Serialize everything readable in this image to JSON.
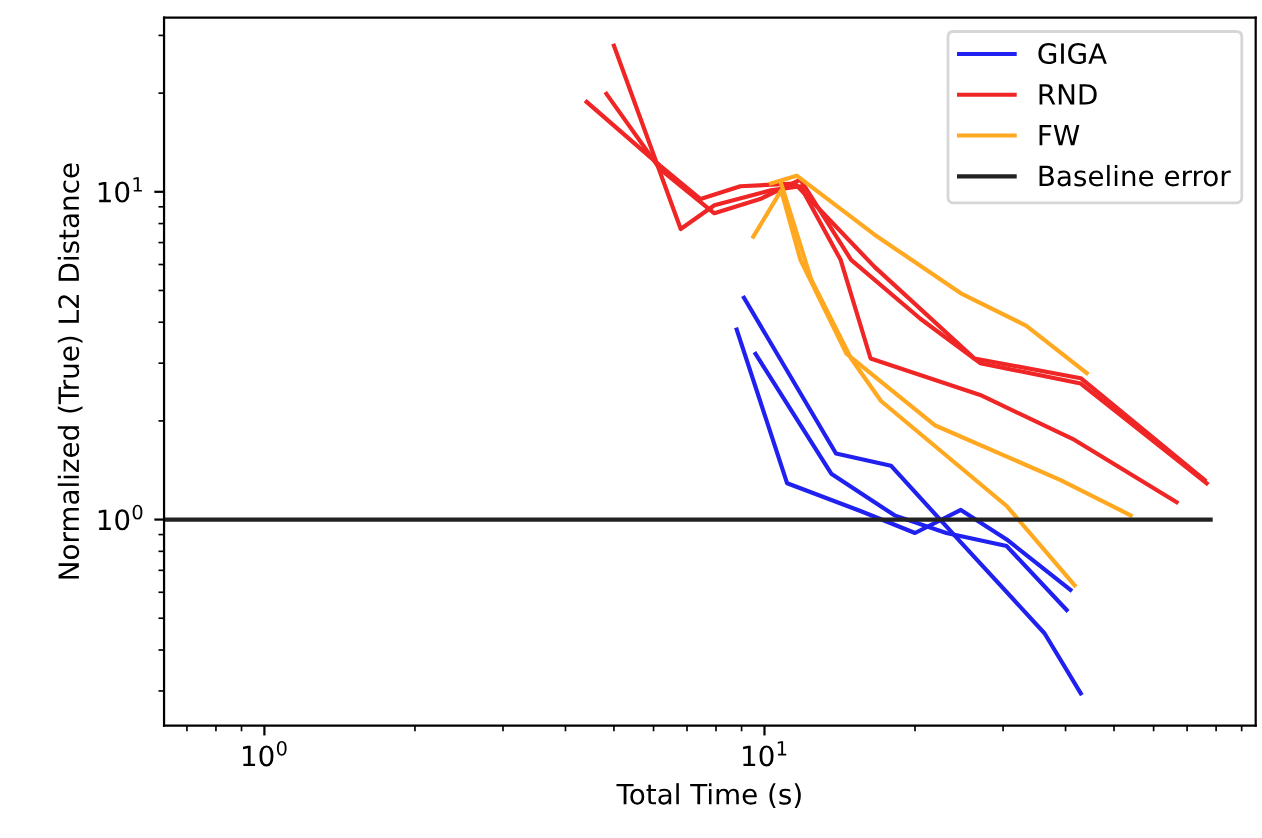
{
  "chart_data": {
    "type": "line",
    "xlabel": "Total Time (s)",
    "ylabel": "Normalized (True) L2 Distance",
    "log": "xy",
    "grid": false,
    "legend": "top right",
    "xlim": [
      0.63,
      96
    ],
    "ylim": [
      0.235,
      34
    ],
    "xticks": [
      {
        "value": 1,
        "label": "10$^{0}$"
      },
      {
        "value": 10,
        "label": "10$^{1}$"
      }
    ],
    "yticks": [
      {
        "value": 1,
        "label": "10$^{0}$"
      },
      {
        "value": 10,
        "label": "10$^{1}$"
      }
    ],
    "series": [
      {
        "name": "GIGA",
        "color": "#2020f0",
        "x": [
          9.1,
          13.9,
          17.9,
          25.1,
          36.3,
          42.9
        ],
        "values": [
          4.75,
          1.59,
          1.46,
          0.83,
          0.45,
          0.295
        ]
      },
      {
        "color": "#2020f0",
        "x": [
          8.8,
          11.1,
          15.6,
          20.0,
          24.7,
          30.5,
          40.9
        ],
        "values": [
          3.8,
          1.29,
          1.06,
          0.91,
          1.07,
          0.87,
          0.61
        ]
      },
      {
        "color": "#2020f0",
        "x": [
          9.6,
          13.6,
          18.2,
          23.1,
          30.5,
          40.2
        ],
        "values": [
          3.2,
          1.38,
          1.03,
          0.91,
          0.83,
          0.53
        ]
      },
      {
        "name": "RND",
        "color": "#f02525",
        "x": [
          4.41,
          6.19,
          7.45,
          8.95,
          11.5,
          16.6,
          26.3,
          42.9,
          75.9
        ],
        "values": [
          18.8,
          12.0,
          9.5,
          10.4,
          10.6,
          5.9,
          3.1,
          2.7,
          1.32
        ]
      },
      {
        "color": "#f02525",
        "x": [
          4.83,
          6.19,
          7.94,
          9.8,
          11.8,
          14.9,
          20.5,
          27.0,
          42.9,
          76.6
        ],
        "values": [
          19.9,
          11.7,
          8.6,
          9.5,
          10.9,
          6.2,
          4.1,
          3.0,
          2.6,
          1.29
        ]
      },
      {
        "color": "#f02525",
        "x": [
          5.0,
          6.8,
          7.94,
          10.3,
          11.8,
          14.2,
          16.3,
          27.0,
          41.7,
          66.7
        ],
        "values": [
          27.9,
          7.7,
          9.1,
          10.1,
          10.4,
          6.2,
          3.1,
          2.4,
          1.75,
          1.13
        ]
      },
      {
        "name": "FW",
        "color": "#ffa820",
        "x": [
          10.3,
          11.6,
          16.6,
          24.7,
          33.4,
          44.1
        ],
        "values": [
          10.6,
          11.2,
          7.4,
          4.9,
          3.9,
          2.8
        ]
      },
      {
        "color": "#ffa820",
        "x": [
          9.5,
          10.8,
          11.8,
          14.6,
          21.9,
          39.1,
          54.0
        ],
        "values": [
          7.3,
          10.1,
          6.2,
          3.2,
          1.94,
          1.32,
          1.03
        ]
      },
      {
        "color": "#ffa820",
        "x": [
          10.8,
          12.4,
          14.9,
          17.1,
          30.5,
          41.7
        ],
        "values": [
          10.6,
          5.4,
          3.1,
          2.3,
          1.1,
          0.63
        ]
      },
      {
        "name": "Baseline error",
        "color": "#222222",
        "x": [
          0.63,
          78
        ],
        "values": [
          1,
          1
        ]
      }
    ]
  }
}
